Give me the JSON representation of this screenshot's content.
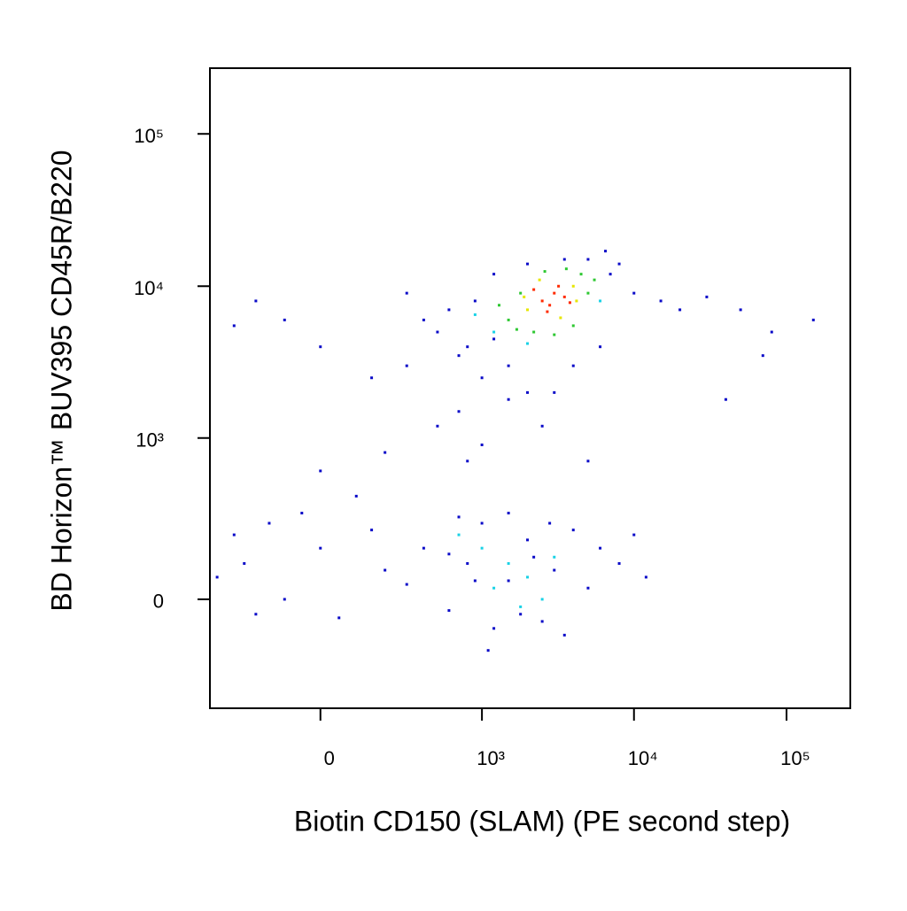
{
  "chart_data": {
    "type": "scatter",
    "scale": "biexponential",
    "xlabel": "Biotin CD150 (SLAM) (PE second step)",
    "ylabel": "BD Horizon™ BUV395 CD45R/B220",
    "xlim": [
      -450,
      262000
    ],
    "ylim": [
      -440,
      270000
    ],
    "xticks": [
      0,
      {
        "value": 1000,
        "label": "10³"
      },
      {
        "value": 10000,
        "label": "10⁴"
      },
      {
        "value": 100000,
        "label": "10⁵"
      }
    ],
    "yticks": [
      0,
      {
        "value": 1000,
        "label": "10³"
      },
      {
        "value": 10000,
        "label": "10⁴"
      },
      {
        "value": 100000,
        "label": "10⁵"
      }
    ],
    "series": [
      {
        "color": "#0a0ac8",
        "x": [
          500,
          300,
          800,
          1000,
          600,
          400,
          1500,
          2000,
          700,
          900,
          1200,
          2000,
          5000,
          8000,
          10000,
          15000,
          20000,
          30000,
          50000,
          80000,
          150000,
          70000,
          40000,
          6000,
          4000,
          7000,
          3000,
          1500,
          800,
          500,
          200,
          100,
          -100,
          -300,
          -200,
          0,
          150,
          300,
          1000,
          2500,
          5000,
          700,
          1200,
          3500,
          6500,
          -50,
          0,
          -400,
          -300,
          -250,
          -150,
          -100,
          0,
          50,
          150,
          200,
          300,
          400,
          600,
          800,
          1000,
          1200,
          1500,
          2000,
          2500,
          3000,
          4000,
          5000,
          6000,
          8000,
          10000,
          12000,
          700,
          1500,
          3500,
          2200,
          900,
          -200,
          1100,
          1800,
          600,
          2800
        ],
        "y": [
          5000,
          3000,
          4000,
          2500,
          7000,
          6000,
          3000,
          2000,
          1500,
          8000,
          12000,
          14000,
          15000,
          14000,
          9000,
          8000,
          7000,
          8500,
          7000,
          5000,
          6000,
          3500,
          1800,
          4000,
          3000,
          12000,
          2000,
          1800,
          700,
          1200,
          800,
          400,
          6000,
          5500,
          8000,
          4000,
          2500,
          9000,
          900,
          1200,
          700,
          3500,
          4500,
          15000,
          17000,
          300,
          600,
          60,
          200,
          100,
          250,
          0,
          150,
          -50,
          220,
          80,
          40,
          150,
          -30,
          100,
          250,
          -80,
          50,
          180,
          -60,
          80,
          220,
          30,
          150,
          100,
          200,
          60,
          280,
          300,
          -100,
          120,
          50,
          -40,
          -150,
          -40,
          130,
          250
        ]
      },
      {
        "color": "#19d2e6",
        "x": [
          1200,
          6000,
          900,
          2000,
          1000,
          1500,
          2000,
          1200,
          3000,
          700,
          2500,
          1800
        ],
        "y": [
          5000,
          8000,
          6500,
          4200,
          150,
          100,
          60,
          30,
          120,
          200,
          0,
          -20
        ]
      },
      {
        "color": "#2ec832",
        "x": [
          1500,
          1800,
          4500,
          5000,
          2200,
          3000,
          1300,
          5500,
          3600,
          2600,
          4000,
          1700
        ],
        "y": [
          6000,
          9000,
          12000,
          9000,
          5000,
          4800,
          7500,
          11000,
          13000,
          12500,
          5500,
          5200
        ]
      },
      {
        "color": "#e6e600",
        "x": [
          2000,
          4000,
          2400,
          4200,
          1900,
          3300
        ],
        "y": [
          7000,
          10000,
          11000,
          8000,
          8500,
          6200
        ]
      },
      {
        "color": "#ff2a00",
        "x": [
          2500,
          3000,
          2800,
          3500,
          2200,
          3200,
          2700,
          3800
        ],
        "y": [
          8000,
          9000,
          7500,
          8500,
          9500,
          10000,
          6800,
          7800
        ]
      }
    ]
  }
}
